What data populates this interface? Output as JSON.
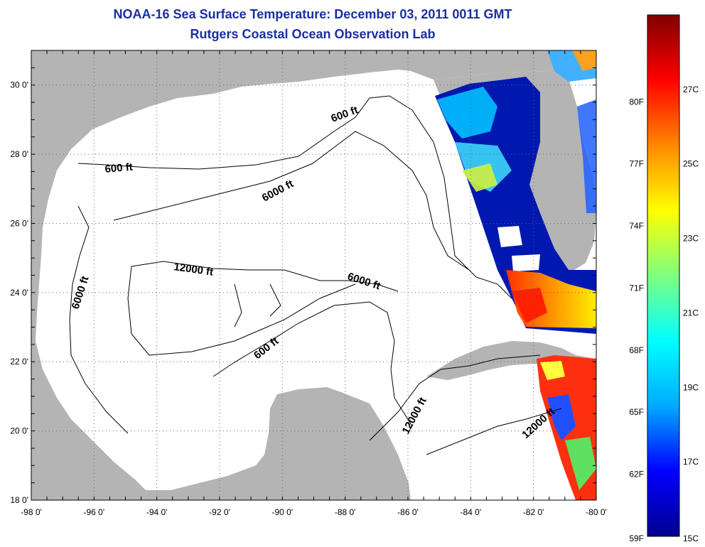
{
  "title": {
    "line1": "NOAA-16 Sea Surface Temperature:  December 03, 2011 0011 GMT",
    "line2": "Rutgers Coastal Ocean Observation Lab"
  },
  "map": {
    "lon_range": [
      -98,
      -80
    ],
    "lat_range": [
      18,
      31
    ],
    "lon_ticks": [
      "-98 0'",
      "-96 0'",
      "-94 0'",
      "-92 0'",
      "-90 0'",
      "-88 0'",
      "-86 0'",
      "-84 0'",
      "-82 0'",
      "-80 0'"
    ],
    "lat_ticks": [
      "18 0'",
      "20 0'",
      "22 0'",
      "24 0'",
      "26 0'",
      "28 0'",
      "30 0'"
    ],
    "land_color": "#b4b4b4",
    "water_color": "#ffffff",
    "grid": "dotted",
    "contour_labels": [
      "600 ft",
      "600 ft",
      "6000 ft",
      "6000 ft",
      "6000 ft",
      "12000 ft",
      "600 ft",
      "12000 ft",
      "12000 ft"
    ]
  },
  "colorbar": {
    "f_labels": [
      "59F",
      "62F",
      "65F",
      "68F",
      "71F",
      "74F",
      "77F",
      "80F"
    ],
    "c_labels": [
      "15C",
      "17C",
      "19C",
      "21C",
      "23C",
      "25C",
      "27C"
    ],
    "colors": [
      "#00008f",
      "#0000ff",
      "#00aaff",
      "#00ffff",
      "#7fff7f",
      "#ffff00",
      "#ff8800",
      "#ff0000",
      "#7f0000"
    ]
  }
}
